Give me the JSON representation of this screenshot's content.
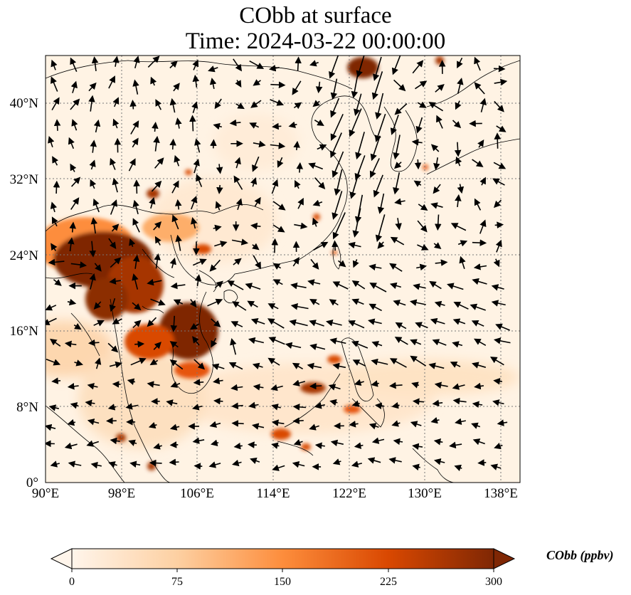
{
  "title": {
    "line1": "CObb at surface",
    "line2": "Time: 2024-03-22 00:00:00"
  },
  "map": {
    "lon_range": [
      90,
      140
    ],
    "lat_range": [
      0,
      45
    ],
    "x_ticks": [
      "90°E",
      "98°E",
      "106°E",
      "114°E",
      "122°E",
      "130°E",
      "138°E"
    ],
    "y_ticks": [
      "0°",
      "8°N",
      "16°N",
      "24°N",
      "32°N",
      "40°N"
    ],
    "gridlines": "dotted",
    "wind_vectors": "arrows"
  },
  "colorbar": {
    "label": "CObb (ppbv)",
    "ticks": [
      "0",
      "75",
      "150",
      "225",
      "300"
    ],
    "range": [
      0,
      300
    ],
    "extend": "both",
    "colormap": [
      "#fff5eb",
      "#fdd0a2",
      "#fd8d3c",
      "#d94801",
      "#7f2704"
    ]
  }
}
